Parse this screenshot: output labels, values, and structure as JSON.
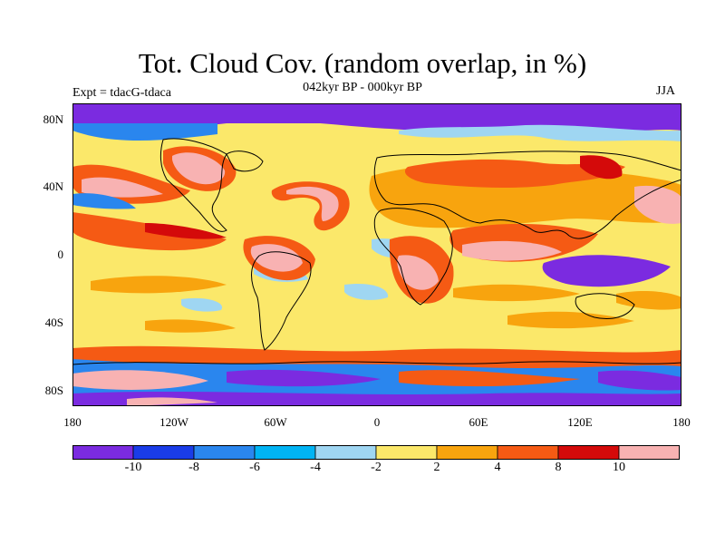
{
  "title": "Tot. Cloud Cov. (random overlap, in %)",
  "subtitle": "042kyr BP - 000kyr BP",
  "left_string": "Expt = tdacG-tdaca",
  "right_string": "JJA",
  "lat_ticks": [
    "80N",
    "40N",
    "0",
    "40S",
    "80S"
  ],
  "lon_ticks": [
    "180",
    "120W",
    "60W",
    "0",
    "60E",
    "120E",
    "180"
  ],
  "colorbar": {
    "labels": [
      "-10",
      "-8",
      "-6",
      "-4",
      "-2",
      "2",
      "4",
      "8",
      "10"
    ],
    "colors": [
      "#7b2be0",
      "#1a3ce8",
      "#2a86ee",
      "#00b4f4",
      "#9fd6f2",
      "#fbe86a",
      "#f8a40e",
      "#f55a14",
      "#d40a0a",
      "#f8b2b2"
    ]
  }
}
